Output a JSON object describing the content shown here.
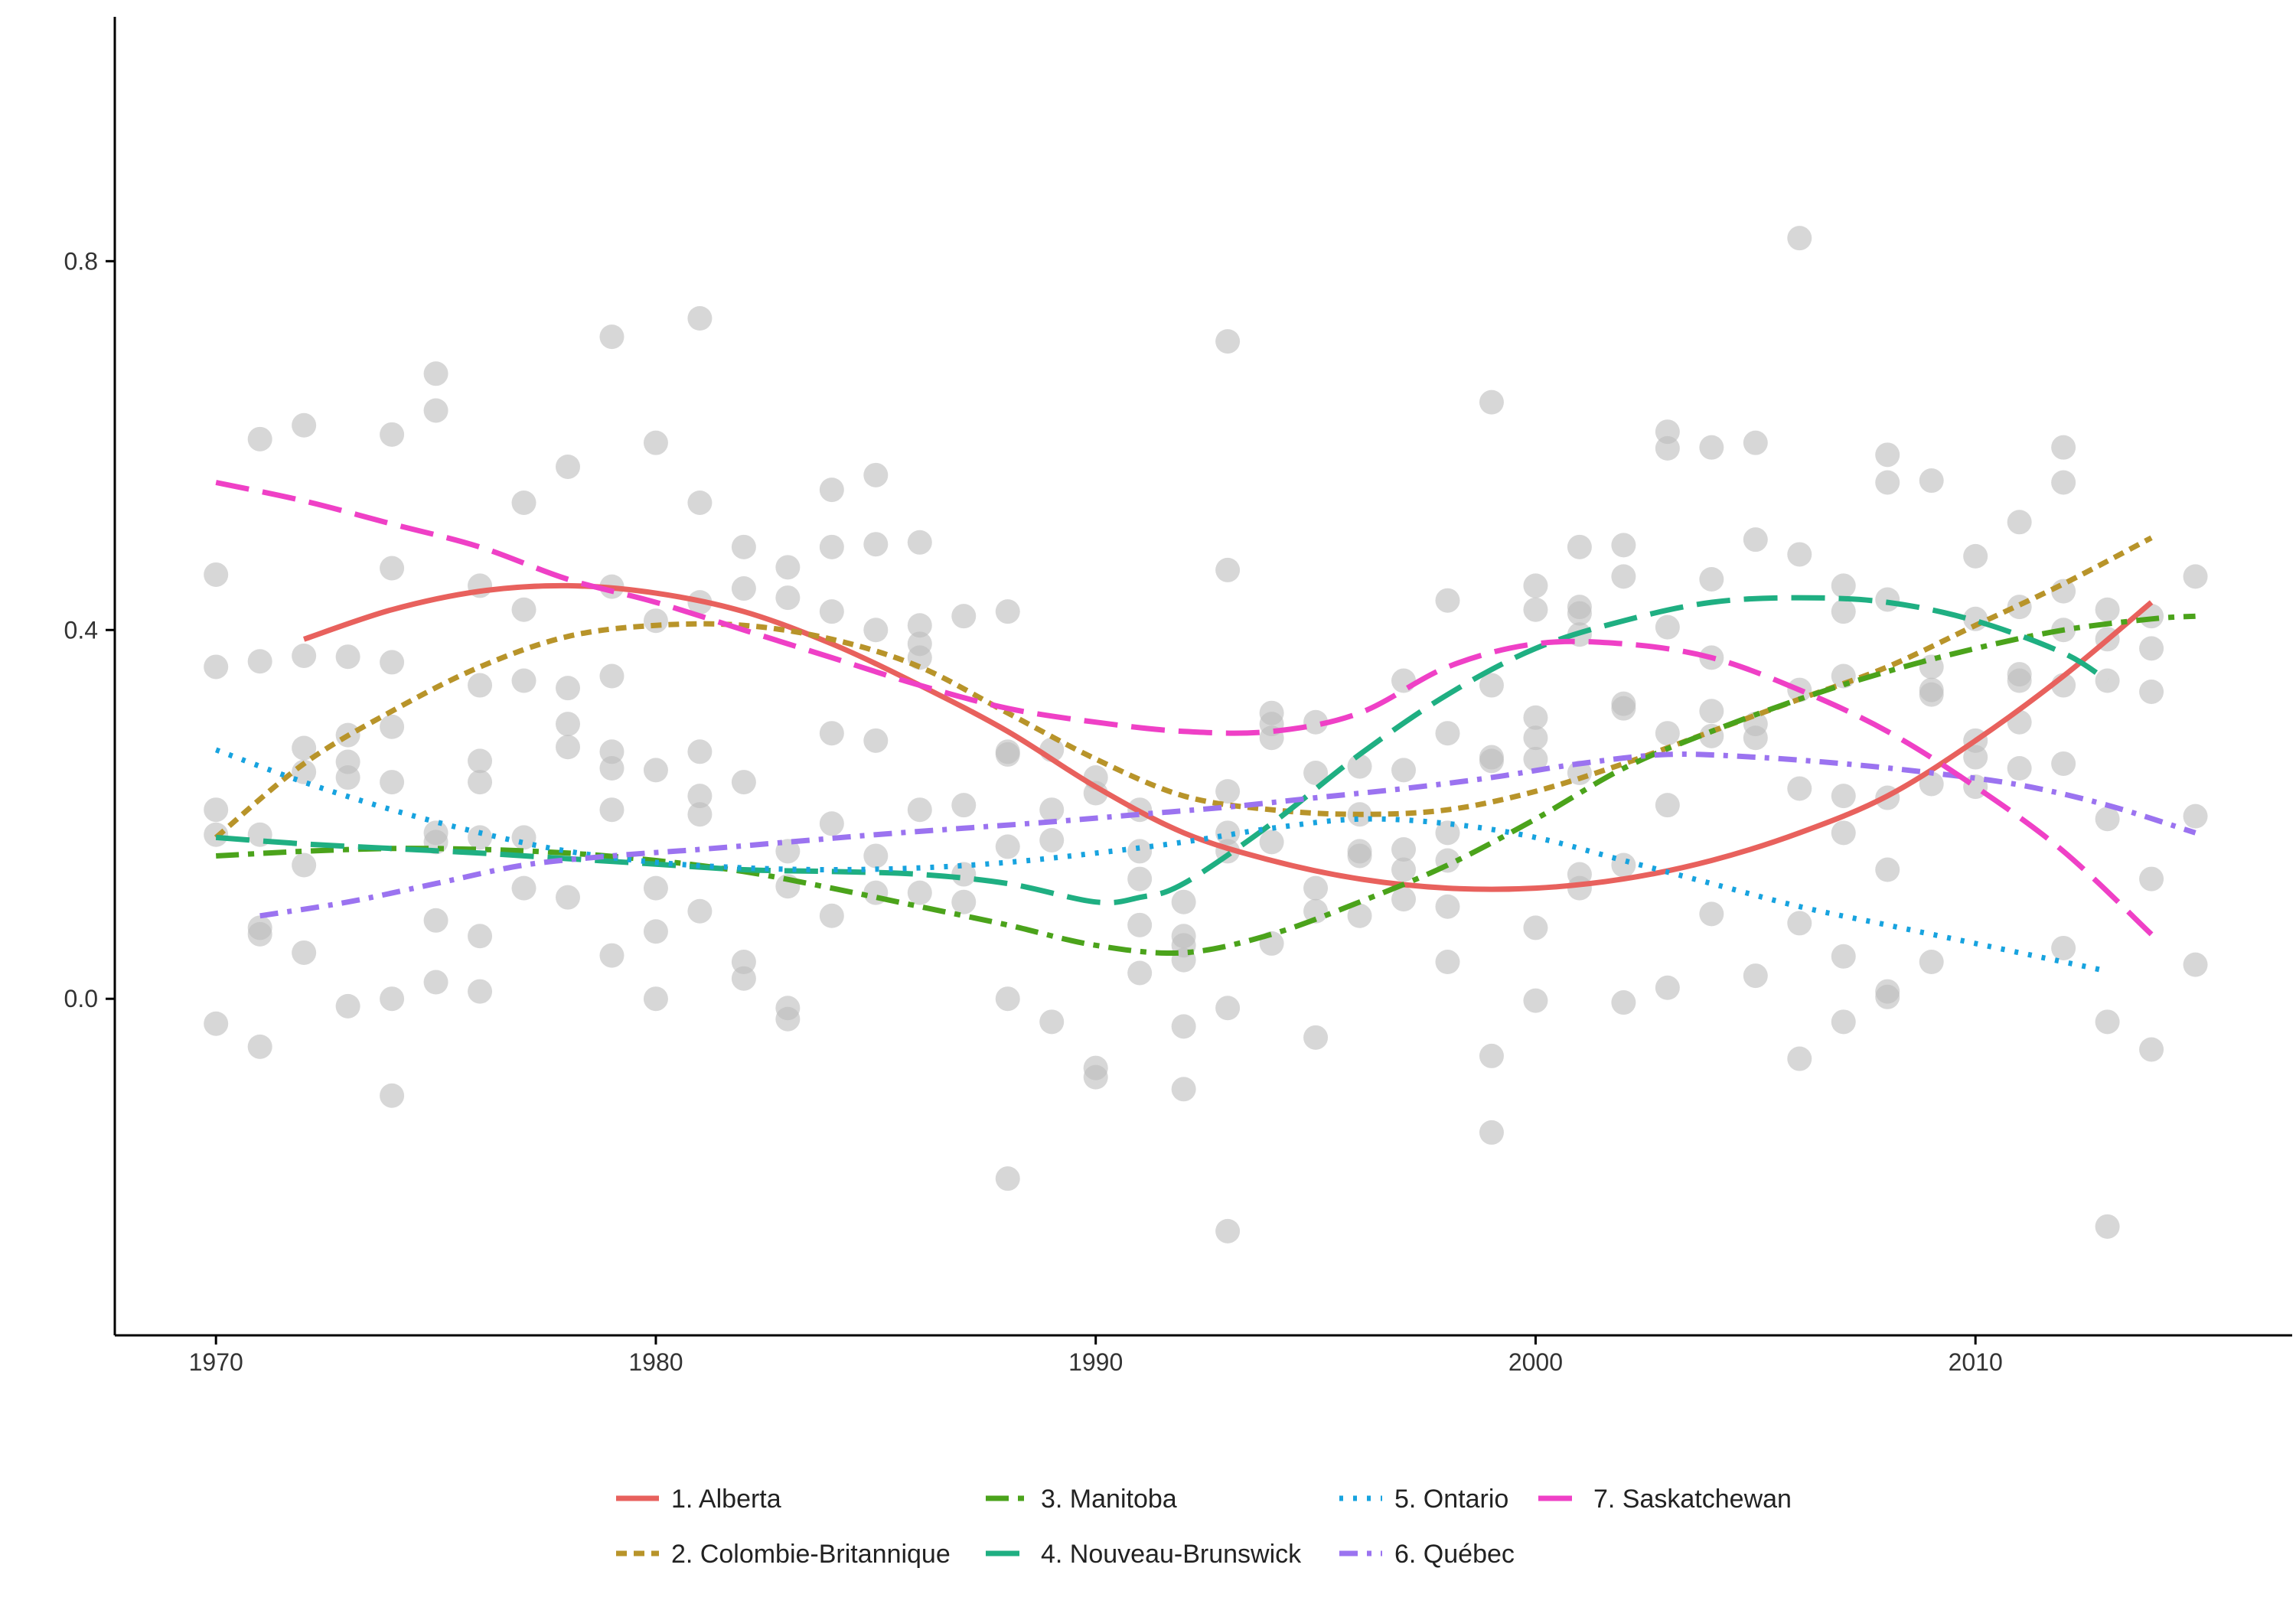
{
  "chart_data": {
    "type": "scatter",
    "title": "",
    "xlabel": "",
    "ylabel": "",
    "xlim": [
      1967.7,
      2017.2
    ],
    "ylim": [
      -0.365,
      1.065
    ],
    "x_ticks": [
      1970,
      1980,
      1990,
      2000,
      2010
    ],
    "x_tick_labels": [
      "1970",
      "1980",
      "1990",
      "2000",
      "2010"
    ],
    "y_ticks": [
      0.0,
      0.4,
      0.8
    ],
    "y_tick_labels": [
      "0.0",
      "0.4",
      "0.8"
    ],
    "grid": false,
    "legend_position": "bottom",
    "point_color": "#bdbdbd",
    "points": [
      [
        1970,
        0.46
      ],
      [
        1970,
        0.36
      ],
      [
        1970,
        0.205
      ],
      [
        1970,
        0.178
      ],
      [
        1970,
        -0.027
      ],
      [
        1971,
        0.607
      ],
      [
        1971,
        0.366
      ],
      [
        1971,
        0.178
      ],
      [
        1971,
        0.077
      ],
      [
        1971,
        0.07
      ],
      [
        1971,
        -0.052
      ],
      [
        1972,
        0.622
      ],
      [
        1972,
        0.372
      ],
      [
        1972,
        0.272
      ],
      [
        1972,
        0.246
      ],
      [
        1972,
        0.145
      ],
      [
        1972,
        0.05
      ],
      [
        1973,
        0.371
      ],
      [
        1973,
        0.286
      ],
      [
        1973,
        0.257
      ],
      [
        1973,
        0.24
      ],
      [
        1973,
        -0.008
      ],
      [
        1974,
        0.612
      ],
      [
        1974,
        0.467
      ],
      [
        1974,
        0.365
      ],
      [
        1974,
        0.295
      ],
      [
        1974,
        0.235
      ],
      [
        1974,
        0.0
      ],
      [
        1974,
        -0.105
      ],
      [
        1975,
        0.678
      ],
      [
        1975,
        0.638
      ],
      [
        1975,
        0.18
      ],
      [
        1975,
        0.17
      ],
      [
        1975,
        0.085
      ],
      [
        1975,
        0.018
      ],
      [
        1976,
        0.448
      ],
      [
        1976,
        0.34
      ],
      [
        1976,
        0.258
      ],
      [
        1976,
        0.235
      ],
      [
        1976,
        0.175
      ],
      [
        1976,
        0.068
      ],
      [
        1976,
        0.008
      ],
      [
        1977,
        0.538
      ],
      [
        1977,
        0.422
      ],
      [
        1977,
        0.345
      ],
      [
        1977,
        0.175
      ],
      [
        1977,
        0.12
      ],
      [
        1978,
        0.577
      ],
      [
        1978,
        0.337
      ],
      [
        1978,
        0.298
      ],
      [
        1978,
        0.273
      ],
      [
        1978,
        0.11
      ],
      [
        1979,
        0.718
      ],
      [
        1979,
        0.447
      ],
      [
        1979,
        0.35
      ],
      [
        1979,
        0.268
      ],
      [
        1979,
        0.25
      ],
      [
        1979,
        0.205
      ],
      [
        1979,
        0.047
      ],
      [
        1980,
        0.603
      ],
      [
        1980,
        0.41
      ],
      [
        1980,
        0.248
      ],
      [
        1980,
        0.12
      ],
      [
        1980,
        0.073
      ],
      [
        1980,
        0.0
      ],
      [
        1981,
        0.738
      ],
      [
        1981,
        0.538
      ],
      [
        1981,
        0.43
      ],
      [
        1981,
        0.268
      ],
      [
        1981,
        0.22
      ],
      [
        1981,
        0.2
      ],
      [
        1981,
        0.095
      ],
      [
        1982,
        0.49
      ],
      [
        1982,
        0.445
      ],
      [
        1982,
        0.235
      ],
      [
        1982,
        0.04
      ],
      [
        1982,
        0.022
      ],
      [
        1983,
        0.468
      ],
      [
        1983,
        0.435
      ],
      [
        1983,
        0.16
      ],
      [
        1983,
        0.122
      ],
      [
        1983,
        -0.01
      ],
      [
        1983,
        -0.022
      ],
      [
        1984,
        0.552
      ],
      [
        1984,
        0.49
      ],
      [
        1984,
        0.42
      ],
      [
        1984,
        0.288
      ],
      [
        1984,
        0.19
      ],
      [
        1984,
        0.09
      ],
      [
        1985,
        0.568
      ],
      [
        1985,
        0.493
      ],
      [
        1985,
        0.4
      ],
      [
        1985,
        0.28
      ],
      [
        1985,
        0.155
      ],
      [
        1985,
        0.115
      ],
      [
        1986,
        0.495
      ],
      [
        1986,
        0.405
      ],
      [
        1986,
        0.385
      ],
      [
        1986,
        0.37
      ],
      [
        1986,
        0.205
      ],
      [
        1986,
        0.115
      ],
      [
        1987,
        0.415
      ],
      [
        1987,
        0.21
      ],
      [
        1987,
        0.135
      ],
      [
        1987,
        0.105
      ],
      [
        1988,
        0.42
      ],
      [
        1988,
        0.268
      ],
      [
        1988,
        0.265
      ],
      [
        1988,
        0.165
      ],
      [
        1988,
        0.0
      ],
      [
        1988,
        -0.195
      ],
      [
        1989,
        0.27
      ],
      [
        1989,
        0.205
      ],
      [
        1989,
        0.172
      ],
      [
        1989,
        -0.025
      ],
      [
        1990,
        0.24
      ],
      [
        1990,
        0.223
      ],
      [
        1990,
        -0.075
      ],
      [
        1990,
        -0.085
      ],
      [
        1991,
        0.205
      ],
      [
        1991,
        0.16
      ],
      [
        1991,
        0.13
      ],
      [
        1991,
        0.08
      ],
      [
        1991,
        0.028
      ],
      [
        1992,
        0.105
      ],
      [
        1992,
        0.068
      ],
      [
        1992,
        0.058
      ],
      [
        1992,
        0.042
      ],
      [
        1992,
        -0.03
      ],
      [
        1992,
        -0.098
      ],
      [
        1993,
        0.713
      ],
      [
        1993,
        0.465
      ],
      [
        1993,
        0.225
      ],
      [
        1993,
        0.18
      ],
      [
        1993,
        0.16
      ],
      [
        1993,
        -0.01
      ],
      [
        1993,
        -0.252
      ],
      [
        1994,
        0.31
      ],
      [
        1994,
        0.298
      ],
      [
        1994,
        0.283
      ],
      [
        1994,
        0.17
      ],
      [
        1994,
        0.06
      ],
      [
        1995,
        0.3
      ],
      [
        1995,
        0.245
      ],
      [
        1995,
        0.12
      ],
      [
        1995,
        0.095
      ],
      [
        1995,
        -0.042
      ],
      [
        1996,
        0.252
      ],
      [
        1996,
        0.2
      ],
      [
        1996,
        0.16
      ],
      [
        1996,
        0.155
      ],
      [
        1996,
        0.09
      ],
      [
        1997,
        0.345
      ],
      [
        1997,
        0.248
      ],
      [
        1997,
        0.162
      ],
      [
        1997,
        0.14
      ],
      [
        1997,
        0.108
      ],
      [
        1998,
        0.432
      ],
      [
        1998,
        0.288
      ],
      [
        1998,
        0.18
      ],
      [
        1998,
        0.15
      ],
      [
        1998,
        0.1
      ],
      [
        1998,
        0.04
      ],
      [
        1999,
        0.647
      ],
      [
        1999,
        0.34
      ],
      [
        1999,
        0.262
      ],
      [
        1999,
        0.258
      ],
      [
        1999,
        -0.062
      ],
      [
        1999,
        -0.145
      ],
      [
        2000,
        0.448
      ],
      [
        2000,
        0.422
      ],
      [
        2000,
        0.305
      ],
      [
        2000,
        0.283
      ],
      [
        2000,
        0.26
      ],
      [
        2000,
        0.077
      ],
      [
        2000,
        -0.002
      ],
      [
        2001,
        0.49
      ],
      [
        2001,
        0.425
      ],
      [
        2001,
        0.418
      ],
      [
        2001,
        0.395
      ],
      [
        2001,
        0.245
      ],
      [
        2001,
        0.135
      ],
      [
        2001,
        0.12
      ],
      [
        2002,
        0.492
      ],
      [
        2002,
        0.458
      ],
      [
        2002,
        0.32
      ],
      [
        2002,
        0.315
      ],
      [
        2002,
        0.145
      ],
      [
        2002,
        -0.004
      ],
      [
        2003,
        0.615
      ],
      [
        2003,
        0.597
      ],
      [
        2003,
        0.403
      ],
      [
        2003,
        0.288
      ],
      [
        2003,
        0.21
      ],
      [
        2003,
        0.012
      ],
      [
        2004,
        0.598
      ],
      [
        2004,
        0.455
      ],
      [
        2004,
        0.37
      ],
      [
        2004,
        0.312
      ],
      [
        2004,
        0.285
      ],
      [
        2004,
        0.092
      ],
      [
        2005,
        0.603
      ],
      [
        2005,
        0.498
      ],
      [
        2005,
        0.298
      ],
      [
        2005,
        0.283
      ],
      [
        2005,
        0.025
      ],
      [
        2006,
        0.825
      ],
      [
        2006,
        0.482
      ],
      [
        2006,
        0.335
      ],
      [
        2006,
        0.228
      ],
      [
        2006,
        0.082
      ],
      [
        2006,
        -0.065
      ],
      [
        2007,
        0.448
      ],
      [
        2007,
        0.42
      ],
      [
        2007,
        0.35
      ],
      [
        2007,
        0.22
      ],
      [
        2007,
        0.18
      ],
      [
        2007,
        0.046
      ],
      [
        2007,
        -0.025
      ],
      [
        2008,
        0.59
      ],
      [
        2008,
        0.56
      ],
      [
        2008,
        0.433
      ],
      [
        2008,
        0.218
      ],
      [
        2008,
        0.14
      ],
      [
        2008,
        0.008
      ],
      [
        2008,
        0.002
      ],
      [
        2009,
        0.562
      ],
      [
        2009,
        0.36
      ],
      [
        2009,
        0.335
      ],
      [
        2009,
        0.33
      ],
      [
        2009,
        0.233
      ],
      [
        2009,
        0.04
      ],
      [
        2010,
        0.48
      ],
      [
        2010,
        0.412
      ],
      [
        2010,
        0.28
      ],
      [
        2010,
        0.262
      ],
      [
        2010,
        0.23
      ],
      [
        2011,
        0.517
      ],
      [
        2011,
        0.425
      ],
      [
        2011,
        0.352
      ],
      [
        2011,
        0.345
      ],
      [
        2011,
        0.3
      ],
      [
        2011,
        0.25
      ],
      [
        2012,
        0.598
      ],
      [
        2012,
        0.56
      ],
      [
        2012,
        0.442
      ],
      [
        2012,
        0.4
      ],
      [
        2012,
        0.34
      ],
      [
        2012,
        0.255
      ],
      [
        2012,
        0.055
      ],
      [
        2013,
        0.422
      ],
      [
        2013,
        0.39
      ],
      [
        2013,
        0.345
      ],
      [
        2013,
        0.195
      ],
      [
        2013,
        -0.025
      ],
      [
        2013,
        -0.247
      ],
      [
        2014,
        0.415
      ],
      [
        2014,
        0.38
      ],
      [
        2014,
        0.333
      ],
      [
        2014,
        0.13
      ],
      [
        2014,
        -0.055
      ],
      [
        2015,
        0.458
      ],
      [
        2015,
        0.198
      ],
      [
        2015,
        0.037
      ]
    ],
    "series": [
      {
        "name": "1. Alberta",
        "color": "#E8615D",
        "dash": "solid",
        "x": [
          1972,
          1974,
          1976,
          1978,
          1980,
          1982,
          1984,
          1986,
          1988,
          1990,
          1992,
          1994,
          1996,
          1998,
          2000,
          2002,
          2004,
          2006,
          2008,
          2010,
          2012,
          2014
        ],
        "y": [
          0.39,
          0.422,
          0.442,
          0.448,
          0.44,
          0.42,
          0.385,
          0.34,
          0.29,
          0.23,
          0.18,
          0.15,
          0.13,
          0.12,
          0.12,
          0.13,
          0.15,
          0.18,
          0.22,
          0.28,
          0.35,
          0.43
        ]
      },
      {
        "name": "2. Colombie-Britannique",
        "color": "#B8942A",
        "dash": "short-dash",
        "x": [
          1970,
          1972,
          1974,
          1976,
          1978,
          1980,
          1982,
          1984,
          1986,
          1988,
          1990,
          1992,
          1994,
          1996,
          1998,
          2000,
          2002,
          2004,
          2006,
          2008,
          2010,
          2012,
          2014
        ],
        "y": [
          0.175,
          0.255,
          0.312,
          0.36,
          0.393,
          0.405,
          0.405,
          0.39,
          0.36,
          0.31,
          0.26,
          0.22,
          0.205,
          0.2,
          0.205,
          0.225,
          0.255,
          0.29,
          0.325,
          0.36,
          0.405,
          0.45,
          0.5
        ]
      },
      {
        "name": "3. Manitoba",
        "color": "#4BA31B",
        "dash": "long-dash-dot",
        "x": [
          1970,
          1972,
          1974,
          1976,
          1978,
          1980,
          1982,
          1984,
          1986,
          1988,
          1990,
          1992,
          1994,
          1996,
          1998,
          2000,
          2002,
          2004,
          2006,
          2008,
          2010,
          2012,
          2014,
          2015
        ],
        "y": [
          0.155,
          0.16,
          0.163,
          0.162,
          0.158,
          0.15,
          0.138,
          0.12,
          0.1,
          0.08,
          0.058,
          0.05,
          0.07,
          0.105,
          0.145,
          0.195,
          0.25,
          0.29,
          0.325,
          0.355,
          0.38,
          0.4,
          0.412,
          0.415
        ]
      },
      {
        "name": "4. Nouveau-Brunswick",
        "color": "#1FAF82",
        "dash": "long-dash",
        "x": [
          1970,
          1972,
          1974,
          1976,
          1978,
          1980,
          1982,
          1984,
          1986,
          1988,
          1990,
          1991,
          1992,
          1994,
          1996,
          1998,
          2000,
          2002,
          2004,
          2006,
          2008,
          2010,
          2012,
          2013
        ],
        "y": [
          0.175,
          0.168,
          0.163,
          0.158,
          0.152,
          0.146,
          0.14,
          0.138,
          0.135,
          0.125,
          0.105,
          0.11,
          0.125,
          0.19,
          0.265,
          0.33,
          0.38,
          0.41,
          0.43,
          0.435,
          0.43,
          0.41,
          0.375,
          0.345
        ]
      },
      {
        "name": "5. Ontario",
        "color": "#17A3DF",
        "dash": "dotted",
        "x": [
          1970,
          1972,
          1974,
          1976,
          1978,
          1980,
          1982,
          1984,
          1986,
          1988,
          1990,
          1992,
          1994,
          1996,
          1998,
          2000,
          2002,
          2004,
          2006,
          2008,
          2010,
          2012,
          2013
        ],
        "y": [
          0.27,
          0.235,
          0.205,
          0.18,
          0.16,
          0.148,
          0.142,
          0.14,
          0.142,
          0.148,
          0.158,
          0.17,
          0.185,
          0.195,
          0.19,
          0.175,
          0.15,
          0.125,
          0.1,
          0.08,
          0.06,
          0.04,
          0.03
        ]
      },
      {
        "name": "6. Québec",
        "color": "#9B73F0",
        "dash": "dash-dot",
        "x": [
          1971,
          1973,
          1975,
          1977,
          1979,
          1981,
          1983,
          1985,
          1987,
          1989,
          1991,
          1993,
          1995,
          1997,
          1999,
          2001,
          2003,
          2005,
          2007,
          2009,
          2011,
          2013,
          2015
        ],
        "y": [
          0.09,
          0.105,
          0.125,
          0.145,
          0.155,
          0.162,
          0.17,
          0.178,
          0.185,
          0.192,
          0.2,
          0.208,
          0.218,
          0.228,
          0.24,
          0.255,
          0.265,
          0.262,
          0.255,
          0.245,
          0.232,
          0.21,
          0.18
        ]
      },
      {
        "name": "7. Saskatchewan",
        "color": "#EF40C6",
        "dash": "long-dash",
        "x": [
          1970,
          1972,
          1974,
          1976,
          1978,
          1980,
          1982,
          1984,
          1986,
          1988,
          1990,
          1992,
          1994,
          1996,
          1998,
          2000,
          2002,
          2004,
          2006,
          2008,
          2010,
          2012,
          2014
        ],
        "y": [
          0.56,
          0.54,
          0.515,
          0.49,
          0.455,
          0.43,
          0.4,
          0.37,
          0.34,
          0.315,
          0.3,
          0.29,
          0.29,
          0.31,
          0.36,
          0.385,
          0.385,
          0.37,
          0.335,
          0.29,
          0.23,
          0.16,
          0.07
        ]
      }
    ]
  }
}
